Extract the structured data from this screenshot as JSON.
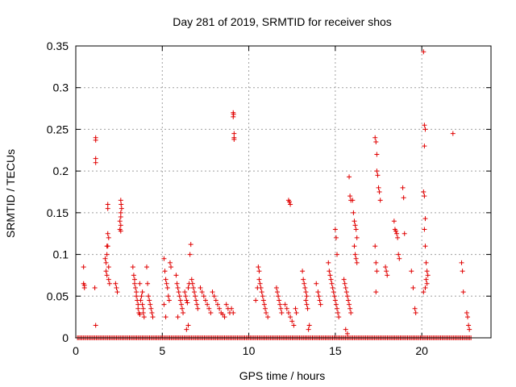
{
  "chart_data": {
    "type": "scatter",
    "title": "Day 281 of 2019, SRMTID for receiver shos",
    "xlabel": "GPS time / hours",
    "ylabel": "SRMTID / TECUs",
    "xlim": [
      0,
      24
    ],
    "ylim": [
      0,
      0.35
    ],
    "xticks": [
      0,
      5,
      10,
      15,
      20
    ],
    "xtick_labels": [
      "0",
      "5",
      "10",
      "15",
      "20"
    ],
    "yticks": [
      0,
      0.05,
      0.1,
      0.15,
      0.2,
      0.25,
      0.3,
      0.35
    ],
    "ytick_labels": [
      "0",
      "0.05",
      "0.1",
      "0.15",
      "0.2",
      "0.25",
      "0.3",
      "0.35"
    ],
    "grid": true,
    "marker": "+",
    "color": "#e00000",
    "series": [
      {
        "name": "SRMTID",
        "points": [
          [
            0.45,
            0.085
          ],
          [
            0.45,
            0.065
          ],
          [
            0.5,
            0.06
          ],
          [
            0.5,
            0.063
          ],
          [
            1.15,
            0.24
          ],
          [
            1.15,
            0.237
          ],
          [
            1.15,
            0.215
          ],
          [
            1.15,
            0.21
          ],
          [
            1.1,
            0.06
          ],
          [
            1.15,
            0.015
          ],
          [
            1.7,
            0.095
          ],
          [
            1.75,
            0.09
          ],
          [
            1.8,
            0.11
          ],
          [
            1.85,
            0.11
          ],
          [
            1.75,
            0.08
          ],
          [
            1.8,
            0.075
          ],
          [
            1.9,
            0.07
          ],
          [
            1.95,
            0.065
          ],
          [
            1.85,
            0.16
          ],
          [
            1.85,
            0.155
          ],
          [
            1.85,
            0.125
          ],
          [
            1.9,
            0.12
          ],
          [
            1.8,
            0.1
          ],
          [
            1.9,
            0.085
          ],
          [
            2.3,
            0.065
          ],
          [
            2.35,
            0.06
          ],
          [
            2.4,
            0.055
          ],
          [
            2.6,
            0.165
          ],
          [
            2.62,
            0.16
          ],
          [
            2.65,
            0.155
          ],
          [
            2.6,
            0.15
          ],
          [
            2.6,
            0.145
          ],
          [
            2.55,
            0.14
          ],
          [
            2.6,
            0.135
          ],
          [
            2.55,
            0.13
          ],
          [
            2.6,
            0.128
          ],
          [
            3.3,
            0.085
          ],
          [
            3.35,
            0.075
          ],
          [
            3.4,
            0.07
          ],
          [
            3.4,
            0.065
          ],
          [
            3.45,
            0.06
          ],
          [
            3.5,
            0.055
          ],
          [
            3.5,
            0.05
          ],
          [
            3.55,
            0.045
          ],
          [
            3.6,
            0.04
          ],
          [
            3.6,
            0.035
          ],
          [
            3.65,
            0.03
          ],
          [
            3.7,
            0.028
          ],
          [
            3.75,
            0.045
          ],
          [
            3.8,
            0.05
          ],
          [
            3.85,
            0.04
          ],
          [
            3.9,
            0.035
          ],
          [
            3.9,
            0.03
          ],
          [
            3.95,
            0.025
          ],
          [
            3.85,
            0.055
          ],
          [
            3.7,
            0.065
          ],
          [
            4.1,
            0.085
          ],
          [
            4.15,
            0.065
          ],
          [
            4.2,
            0.05
          ],
          [
            4.25,
            0.045
          ],
          [
            4.3,
            0.04
          ],
          [
            4.35,
            0.035
          ],
          [
            4.4,
            0.03
          ],
          [
            4.45,
            0.025
          ],
          [
            5.1,
            0.095
          ],
          [
            5.15,
            0.08
          ],
          [
            5.2,
            0.07
          ],
          [
            5.25,
            0.065
          ],
          [
            5.3,
            0.06
          ],
          [
            5.35,
            0.05
          ],
          [
            5.4,
            0.045
          ],
          [
            5.45,
            0.09
          ],
          [
            5.5,
            0.085
          ],
          [
            5.1,
            0.04
          ],
          [
            5.2,
            0.025
          ],
          [
            5.8,
            0.075
          ],
          [
            5.85,
            0.065
          ],
          [
            5.9,
            0.06
          ],
          [
            5.95,
            0.055
          ],
          [
            6.0,
            0.05
          ],
          [
            6.05,
            0.045
          ],
          [
            6.1,
            0.04
          ],
          [
            6.15,
            0.035
          ],
          [
            6.2,
            0.03
          ],
          [
            5.9,
            0.025
          ],
          [
            6.3,
            0.055
          ],
          [
            6.35,
            0.05
          ],
          [
            6.4,
            0.045
          ],
          [
            6.45,
            0.042
          ],
          [
            6.5,
            0.06
          ],
          [
            6.55,
            0.065
          ],
          [
            6.6,
            0.1
          ],
          [
            6.65,
            0.112
          ],
          [
            6.7,
            0.07
          ],
          [
            6.75,
            0.065
          ],
          [
            6.8,
            0.06
          ],
          [
            6.85,
            0.055
          ],
          [
            6.9,
            0.05
          ],
          [
            6.95,
            0.045
          ],
          [
            7.0,
            0.04
          ],
          [
            7.05,
            0.035
          ],
          [
            6.4,
            0.01
          ],
          [
            6.5,
            0.015
          ],
          [
            7.2,
            0.06
          ],
          [
            7.3,
            0.055
          ],
          [
            7.4,
            0.05
          ],
          [
            7.5,
            0.045
          ],
          [
            7.6,
            0.04
          ],
          [
            7.7,
            0.035
          ],
          [
            7.8,
            0.03
          ],
          [
            7.9,
            0.055
          ],
          [
            8.0,
            0.05
          ],
          [
            8.1,
            0.045
          ],
          [
            8.2,
            0.04
          ],
          [
            8.3,
            0.035
          ],
          [
            8.4,
            0.03
          ],
          [
            8.5,
            0.028
          ],
          [
            8.6,
            0.025
          ],
          [
            8.7,
            0.04
          ],
          [
            8.8,
            0.035
          ],
          [
            8.9,
            0.03
          ],
          [
            9.1,
            0.27
          ],
          [
            9.12,
            0.268
          ],
          [
            9.1,
            0.265
          ],
          [
            9.15,
            0.245
          ],
          [
            9.15,
            0.24
          ],
          [
            9.15,
            0.238
          ],
          [
            9.0,
            0.035
          ],
          [
            9.1,
            0.03
          ],
          [
            10.4,
            0.045
          ],
          [
            10.5,
            0.06
          ],
          [
            10.55,
            0.085
          ],
          [
            10.6,
            0.08
          ],
          [
            10.6,
            0.07
          ],
          [
            10.65,
            0.065
          ],
          [
            10.7,
            0.06
          ],
          [
            10.75,
            0.055
          ],
          [
            10.8,
            0.05
          ],
          [
            10.85,
            0.045
          ],
          [
            10.9,
            0.04
          ],
          [
            10.95,
            0.035
          ],
          [
            11.0,
            0.03
          ],
          [
            11.1,
            0.025
          ],
          [
            11.6,
            0.06
          ],
          [
            11.65,
            0.055
          ],
          [
            11.7,
            0.05
          ],
          [
            11.75,
            0.045
          ],
          [
            11.8,
            0.04
          ],
          [
            11.85,
            0.035
          ],
          [
            11.9,
            0.03
          ],
          [
            12.1,
            0.04
          ],
          [
            12.2,
            0.035
          ],
          [
            12.3,
            0.03
          ],
          [
            12.4,
            0.025
          ],
          [
            12.5,
            0.02
          ],
          [
            12.6,
            0.015
          ],
          [
            12.7,
            0.035
          ],
          [
            12.75,
            0.03
          ],
          [
            12.3,
            0.165
          ],
          [
            12.35,
            0.163
          ],
          [
            12.4,
            0.16
          ],
          [
            13.1,
            0.08
          ],
          [
            13.15,
            0.07
          ],
          [
            13.2,
            0.065
          ],
          [
            13.25,
            0.06
          ],
          [
            13.3,
            0.055
          ],
          [
            13.35,
            0.05
          ],
          [
            13.3,
            0.045
          ],
          [
            13.35,
            0.04
          ],
          [
            13.4,
            0.035
          ],
          [
            13.45,
            0.01
          ],
          [
            13.5,
            0.015
          ],
          [
            13.9,
            0.065
          ],
          [
            14.0,
            0.055
          ],
          [
            14.05,
            0.05
          ],
          [
            14.1,
            0.045
          ],
          [
            14.15,
            0.04
          ],
          [
            14.6,
            0.09
          ],
          [
            14.65,
            0.08
          ],
          [
            14.7,
            0.075
          ],
          [
            14.75,
            0.07
          ],
          [
            14.8,
            0.065
          ],
          [
            14.85,
            0.06
          ],
          [
            14.9,
            0.055
          ],
          [
            14.95,
            0.05
          ],
          [
            15.0,
            0.045
          ],
          [
            15.05,
            0.04
          ],
          [
            15.1,
            0.035
          ],
          [
            15.15,
            0.03
          ],
          [
            15.2,
            0.025
          ],
          [
            15.0,
            0.13
          ],
          [
            15.05,
            0.12
          ],
          [
            15.1,
            0.1
          ],
          [
            15.5,
            0.07
          ],
          [
            15.55,
            0.065
          ],
          [
            15.6,
            0.06
          ],
          [
            15.65,
            0.055
          ],
          [
            15.7,
            0.05
          ],
          [
            15.75,
            0.045
          ],
          [
            15.8,
            0.04
          ],
          [
            15.85,
            0.035
          ],
          [
            15.9,
            0.03
          ],
          [
            15.6,
            0.01
          ],
          [
            15.7,
            0.005
          ],
          [
            15.8,
            0.193
          ],
          [
            15.85,
            0.17
          ],
          [
            15.9,
            0.165
          ],
          [
            16.0,
            0.165
          ],
          [
            16.05,
            0.15
          ],
          [
            16.1,
            0.14
          ],
          [
            16.15,
            0.135
          ],
          [
            16.2,
            0.13
          ],
          [
            16.25,
            0.12
          ],
          [
            16.1,
            0.11
          ],
          [
            16.15,
            0.1
          ],
          [
            16.2,
            0.095
          ],
          [
            16.25,
            0.09
          ],
          [
            17.3,
            0.24
          ],
          [
            17.35,
            0.235
          ],
          [
            17.4,
            0.22
          ],
          [
            17.4,
            0.2
          ],
          [
            17.45,
            0.195
          ],
          [
            17.5,
            0.18
          ],
          [
            17.55,
            0.175
          ],
          [
            17.6,
            0.165
          ],
          [
            17.3,
            0.11
          ],
          [
            17.35,
            0.09
          ],
          [
            17.4,
            0.08
          ],
          [
            17.35,
            0.055
          ],
          [
            17.9,
            0.085
          ],
          [
            17.95,
            0.08
          ],
          [
            18.0,
            0.075
          ],
          [
            18.4,
            0.14
          ],
          [
            18.45,
            0.13
          ],
          [
            18.5,
            0.128
          ],
          [
            18.55,
            0.125
          ],
          [
            18.6,
            0.12
          ],
          [
            18.65,
            0.1
          ],
          [
            18.7,
            0.095
          ],
          [
            18.9,
            0.18
          ],
          [
            18.95,
            0.168
          ],
          [
            19.0,
            0.125
          ],
          [
            19.4,
            0.08
          ],
          [
            19.5,
            0.06
          ],
          [
            19.6,
            0.035
          ],
          [
            19.65,
            0.03
          ],
          [
            20.1,
            0.343
          ],
          [
            20.15,
            0.255
          ],
          [
            20.2,
            0.25
          ],
          [
            20.15,
            0.23
          ],
          [
            20.1,
            0.175
          ],
          [
            20.15,
            0.17
          ],
          [
            20.2,
            0.143
          ],
          [
            20.15,
            0.13
          ],
          [
            20.2,
            0.11
          ],
          [
            20.25,
            0.09
          ],
          [
            20.3,
            0.08
          ],
          [
            20.35,
            0.075
          ],
          [
            20.25,
            0.07
          ],
          [
            20.3,
            0.065
          ],
          [
            20.2,
            0.06
          ],
          [
            20.1,
            0.055
          ],
          [
            21.8,
            0.245
          ],
          [
            22.3,
            0.09
          ],
          [
            22.35,
            0.08
          ],
          [
            22.4,
            0.055
          ],
          [
            22.6,
            0.03
          ],
          [
            22.65,
            0.025
          ],
          [
            22.7,
            0.015
          ],
          [
            22.75,
            0.01
          ]
        ],
        "baseline": {
          "y": 0,
          "x_start": 0.1,
          "x_end": 22.9,
          "x_step": 0.0833
        }
      }
    ]
  }
}
